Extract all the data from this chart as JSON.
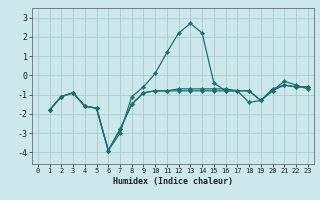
{
  "background_color": "#cce8ed",
  "grid_color": "#aacccc",
  "line_color": "#1a7070",
  "xlabel": "Humidex (Indice chaleur)",
  "xlim": [
    -0.5,
    23.5
  ],
  "ylim": [
    -4.6,
    3.5
  ],
  "yticks": [
    -4,
    -3,
    -2,
    -1,
    0,
    1,
    2,
    3
  ],
  "xticks": [
    0,
    1,
    2,
    3,
    4,
    5,
    6,
    7,
    8,
    9,
    10,
    11,
    12,
    13,
    14,
    15,
    16,
    17,
    18,
    19,
    20,
    21,
    22,
    23
  ],
  "series1_x": [
    1,
    2,
    3,
    4,
    5,
    6,
    7,
    8,
    9,
    10,
    11,
    12,
    13,
    14,
    15,
    16,
    17,
    18,
    19,
    20,
    21,
    22,
    23
  ],
  "series1_y": [
    -1.8,
    -1.1,
    -0.9,
    -1.6,
    -1.7,
    -3.9,
    -3.0,
    -1.1,
    -0.6,
    0.1,
    1.2,
    2.2,
    2.7,
    2.2,
    -0.4,
    -0.8,
    -0.8,
    -1.4,
    -1.3,
    -0.7,
    -0.5,
    -0.6,
    -0.6
  ],
  "series2_x": [
    1,
    2,
    3,
    4,
    5,
    6,
    7,
    8,
    9,
    10,
    11,
    12,
    13,
    14,
    15,
    16,
    17,
    18,
    19,
    20,
    21,
    22,
    23
  ],
  "series2_y": [
    -1.8,
    -1.1,
    -0.9,
    -1.6,
    -1.7,
    -3.9,
    -2.8,
    -1.5,
    -0.9,
    -0.8,
    -0.8,
    -0.7,
    -0.7,
    -0.7,
    -0.7,
    -0.7,
    -0.8,
    -0.8,
    -1.3,
    -0.8,
    -0.5,
    -0.6,
    -0.6
  ],
  "series3_x": [
    1,
    2,
    3,
    4,
    5,
    6,
    7,
    8,
    9,
    10,
    11,
    12,
    13,
    14,
    15,
    16,
    17,
    18,
    19,
    20,
    21,
    22,
    23
  ],
  "series3_y": [
    -1.8,
    -1.1,
    -0.9,
    -1.6,
    -1.7,
    -3.9,
    -2.8,
    -1.5,
    -0.9,
    -0.8,
    -0.8,
    -0.8,
    -0.8,
    -0.8,
    -0.8,
    -0.8,
    -0.8,
    -0.8,
    -1.3,
    -0.8,
    -0.3,
    -0.5,
    -0.7
  ]
}
